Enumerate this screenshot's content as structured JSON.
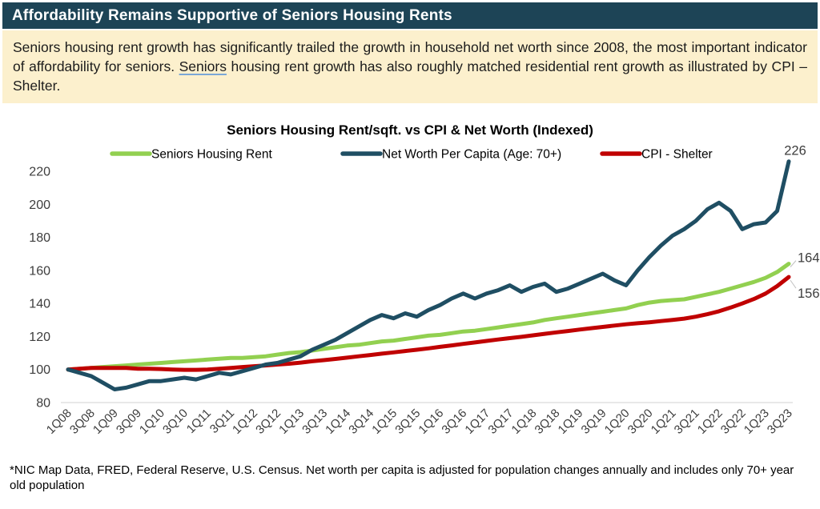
{
  "header": {
    "title": "Affordability Remains Supportive of Seniors Housing Rents"
  },
  "summary": {
    "part1": "Seniors housing rent growth has significantly trailed the growth in household net worth since 2008, the most important indicator of affordability for seniors. ",
    "underlined_word": "Seniors",
    "part2": " housing rent growth has also roughly matched residential rent growth as illustrated by CPI – Shelter."
  },
  "footnote": "*NIC Map Data, FRED, Federal Reserve, U.S. Census. Net worth per capita is adjusted for population changes annually and includes only 70+ year old population",
  "colors": {
    "header_bg": "#1d4456",
    "summary_bg": "#fcf0cd",
    "axis_line": "#d9d9d9",
    "axis_text": "#3d3d3d",
    "label_text": "#3d3d3d"
  },
  "chart_data": {
    "type": "line",
    "title": "Seniors Housing Rent/sqft. vs CPI & Net Worth (Indexed)",
    "xlabel": "",
    "ylabel": "",
    "ylim": [
      80,
      230
    ],
    "yticks": [
      80,
      100,
      120,
      140,
      160,
      180,
      200,
      220
    ],
    "grid": false,
    "legend_position": "top",
    "x_tick_every": 2,
    "x": [
      "1Q08",
      "2Q08",
      "3Q08",
      "4Q08",
      "1Q09",
      "2Q09",
      "3Q09",
      "4Q09",
      "1Q10",
      "2Q10",
      "3Q10",
      "4Q10",
      "1Q11",
      "2Q11",
      "3Q11",
      "4Q11",
      "1Q12",
      "2Q12",
      "3Q12",
      "4Q12",
      "1Q13",
      "2Q13",
      "3Q13",
      "4Q13",
      "1Q14",
      "2Q14",
      "3Q14",
      "4Q14",
      "1Q15",
      "2Q15",
      "3Q15",
      "4Q15",
      "1Q16",
      "2Q16",
      "3Q16",
      "4Q16",
      "1Q17",
      "2Q17",
      "3Q17",
      "4Q17",
      "1Q18",
      "2Q18",
      "3Q18",
      "4Q18",
      "1Q19",
      "2Q19",
      "3Q19",
      "4Q19",
      "1Q20",
      "2Q20",
      "3Q20",
      "4Q20",
      "1Q21",
      "2Q21",
      "3Q21",
      "4Q21",
      "1Q22",
      "2Q22",
      "3Q22",
      "4Q22",
      "1Q23",
      "2Q23",
      "3Q23"
    ],
    "series": [
      {
        "name": "Seniors Housing Rent",
        "color": "#92d050",
        "end_label": 164,
        "values": [
          100,
          100.5,
          101,
          101.5,
          102,
          102.5,
          103,
          103.5,
          104,
          104.5,
          105,
          105.5,
          106,
          106.5,
          107,
          107,
          107.5,
          108,
          109,
          110,
          110.5,
          111.5,
          112.5,
          113.5,
          114.5,
          115,
          116,
          117,
          117.5,
          118.5,
          119.5,
          120.5,
          121,
          122,
          123,
          123.5,
          124.5,
          125.5,
          126.5,
          127.5,
          128.5,
          130,
          131,
          132,
          133,
          134,
          135,
          136,
          137,
          139,
          140.5,
          141.5,
          142,
          142.5,
          144,
          145.5,
          147,
          149,
          151,
          153,
          155.5,
          159,
          164
        ]
      },
      {
        "name": "Net Worth Per Capita (Age: 70+)",
        "color": "#1f4e63",
        "end_label": 226,
        "values": [
          100,
          98,
          96,
          92,
          88,
          89,
          91,
          93,
          93,
          94,
          95,
          94,
          96,
          98,
          97,
          99,
          101,
          103,
          104,
          106,
          108,
          112,
          115,
          118,
          122,
          126,
          130,
          133,
          131,
          134,
          132,
          136,
          139,
          143,
          146,
          143,
          146,
          148,
          151,
          147,
          150,
          152,
          147,
          149,
          152,
          155,
          158,
          154,
          151,
          160,
          168,
          175,
          181,
          185,
          190,
          197,
          201,
          196,
          185,
          188,
          189,
          196,
          226
        ]
      },
      {
        "name": "CPI - Shelter",
        "color": "#c00000",
        "end_label": 156,
        "values": [
          100,
          100.5,
          101,
          101,
          101,
          101,
          100.5,
          100.5,
          100.3,
          100,
          99.8,
          99.8,
          100,
          100.5,
          101,
          101.5,
          102,
          102.5,
          103,
          103.5,
          104.2,
          105,
          105.7,
          106.4,
          107.2,
          108,
          108.8,
          109.6,
          110.4,
          111.2,
          112,
          112.8,
          113.7,
          114.6,
          115.5,
          116.4,
          117.3,
          118.2,
          119,
          119.8,
          120.7,
          121.6,
          122.5,
          123.3,
          124.2,
          125,
          125.8,
          126.6,
          127.4,
          128,
          128.6,
          129.3,
          130,
          130.8,
          132,
          133.5,
          135.3,
          137.5,
          140,
          142.7,
          146,
          150.5,
          156
        ]
      }
    ]
  }
}
